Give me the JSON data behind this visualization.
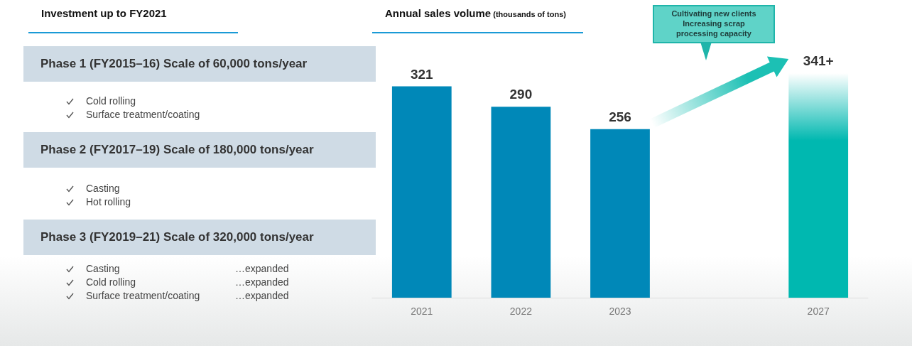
{
  "chart_data": [
    {
      "type": "other",
      "title": "Investment up to FY2021",
      "annotations": [
        "Phase 1 (FY2015–16) Scale of 60,000 tons/year",
        "Cold rolling",
        "Surface treatment/coating",
        "Phase 2 (FY2017–19) Scale of 180,000 tons/year",
        "Casting",
        "Hot rolling",
        "Phase 3 (FY2019–21) Scale of 320,000 tons/year",
        "Casting",
        "…expanded",
        "Cold rolling",
        "…expanded",
        "Surface treatment/coating",
        "…expanded"
      ]
    },
    {
      "type": "bar",
      "title": "Annual sales volume",
      "ylabel": "(thousands of tons)",
      "categories": [
        "2021",
        "2022",
        "2023",
        null,
        "2027"
      ],
      "values": [
        321,
        290,
        256,
        null,
        341
      ],
      "colors": [
        "#0088b8",
        "#0088b8",
        "#0088b8",
        null,
        "#00b8b0"
      ],
      "value_labels": [
        "321",
        "290",
        "256",
        null,
        "341+"
      ],
      "annotations": [
        "Cultivating new clients\nIncreasing scrap\nprocessing capacity"
      ]
    }
  ]
}
